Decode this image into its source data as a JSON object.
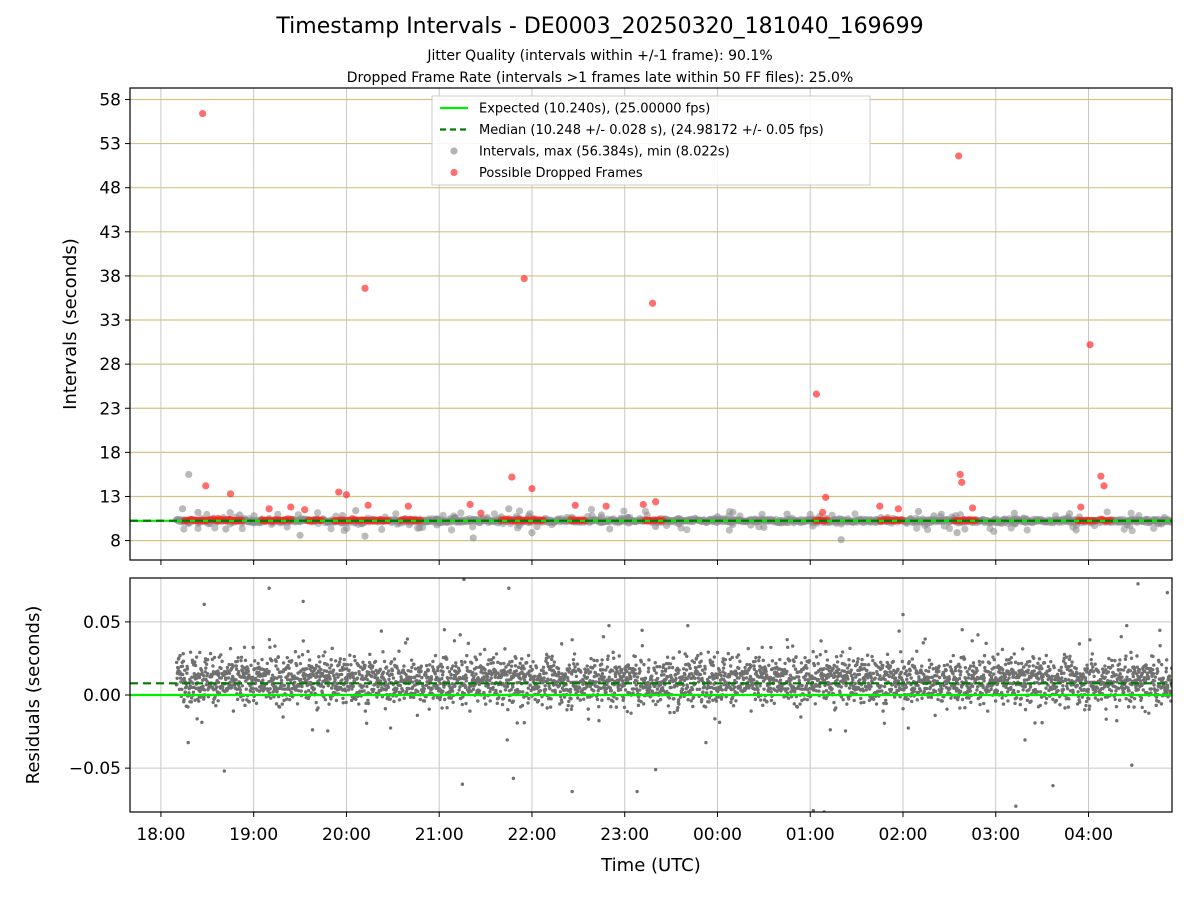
{
  "chart_data": [
    {
      "type": "scatter",
      "title": "Timestamp Intervals - DE0003_20250320_181040_169699",
      "subtitle": [
        "Jitter Quality (intervals within +/-1 frame): 90.1%",
        "Dropped Frame Rate (intervals >1 frames late within 50 FF files): 25.0%"
      ],
      "ylabel": "Intervals (seconds)",
      "xlabel": "",
      "ylim": [
        5.8,
        59.3
      ],
      "yticks": [
        8,
        13,
        18,
        23,
        28,
        33,
        38,
        43,
        48,
        53,
        58
      ],
      "grid": true,
      "legend_position": "upper-center",
      "lines": [
        {
          "name": "Expected (10.240s), (25.00000 fps)",
          "y": 10.24,
          "style": "solid",
          "color": "#00ee00"
        },
        {
          "name": "Median (10.248 +/- 0.028 s), (24.98172 +/- 0.05 fps)",
          "y": 10.248,
          "style": "dashed",
          "color": "#007a00"
        }
      ],
      "series": [
        {
          "name": "Intervals, max (56.384s), min (8.022s)",
          "color": "#808080",
          "x": [
            "18:14",
            "18:18",
            "18:24",
            "18:42",
            "18:51",
            "19:30",
            "20:06",
            "20:12",
            "21:10",
            "21:22",
            "21:45",
            "22:00",
            "22:45",
            "23:20",
            "23:35",
            "00:00",
            "00:10",
            "00:25",
            "00:30",
            "00:45",
            "01:05",
            "01:20",
            "01:50",
            "02:10",
            "02:20",
            "02:35",
            "03:12",
            "03:52",
            "04:25",
            "04:45"
          ],
          "y": [
            11.6,
            15.5,
            11.2,
            9.3,
            10.9,
            8.6,
            11.4,
            8.5,
            10.6,
            8.3,
            11.6,
            8.9,
            10.9,
            9.6,
            9.9,
            10.7,
            11.2,
            10.1,
            9.5,
            11.0,
            10.2,
            8.1,
            10.6,
            11.3,
            10.8,
            8.9,
            11.1,
            9.2,
            9.8,
            9.9
          ]
        },
        {
          "name": "Possible Dropped Frames",
          "color": "#ff3030",
          "x": [
            "18:27",
            "18:29",
            "18:37",
            "18:45",
            "19:10",
            "19:24",
            "19:33",
            "19:55",
            "20:00",
            "20:12",
            "20:14",
            "20:40",
            "21:20",
            "21:27",
            "21:47",
            "21:55",
            "22:00",
            "22:28",
            "22:48",
            "23:12",
            "23:18",
            "23:20",
            "01:04",
            "01:08",
            "01:10",
            "01:45",
            "01:57",
            "02:36",
            "02:37",
            "02:38",
            "02:45",
            "03:55",
            "04:01",
            "04:08",
            "04:10"
          ],
          "y": [
            56.4,
            14.2,
            10.5,
            13.3,
            11.6,
            11.8,
            11.5,
            13.5,
            13.2,
            36.6,
            12.0,
            11.9,
            12.1,
            11.1,
            15.2,
            37.7,
            13.9,
            12.0,
            11.9,
            12.1,
            34.9,
            12.4,
            24.6,
            11.2,
            12.9,
            11.9,
            11.6,
            51.6,
            15.5,
            14.6,
            11.7,
            11.8,
            30.2,
            15.3,
            14.2
          ]
        }
      ]
    },
    {
      "type": "scatter",
      "title": "",
      "xlabel": "Time (UTC)",
      "ylabel": "Residuals (seconds)",
      "ylim": [
        -0.08,
        0.08
      ],
      "yticks": [
        0.05,
        0.0,
        -0.05
      ],
      "ytick_labels": [
        "0.05",
        "0.00",
        "−0.05"
      ],
      "xlim": [
        "17:40",
        "04:54"
      ],
      "xticks": [
        "18:00",
        "19:00",
        "20:00",
        "21:00",
        "22:00",
        "23:00",
        "00:00",
        "01:00",
        "02:00",
        "03:00",
        "04:00"
      ],
      "grid": true,
      "lines": [
        {
          "y": 0.0,
          "style": "solid",
          "color": "#00ee00"
        },
        {
          "y": 0.008,
          "style": "dashed",
          "color": "#007a00"
        }
      ],
      "series": [
        {
          "color": "#707070",
          "x_range": [
            "18:10",
            "04:54"
          ],
          "center": 0.01,
          "spread": 0.02,
          "outliers": [
            {
              "x": "18:28",
              "y": 0.062
            },
            {
              "x": "18:41",
              "y": -0.052
            },
            {
              "x": "19:10",
              "y": 0.073
            },
            {
              "x": "19:32",
              "y": 0.064
            },
            {
              "x": "21:15",
              "y": -0.061
            },
            {
              "x": "21:16",
              "y": 0.079
            },
            {
              "x": "21:45",
              "y": 0.073
            },
            {
              "x": "21:48",
              "y": -0.057
            },
            {
              "x": "22:26",
              "y": -0.066
            },
            {
              "x": "23:08",
              "y": -0.066
            },
            {
              "x": "23:20",
              "y": -0.051
            },
            {
              "x": "01:02",
              "y": -0.079
            },
            {
              "x": "01:09",
              "y": -0.08
            },
            {
              "x": "02:00",
              "y": 0.055
            },
            {
              "x": "03:13",
              "y": -0.076
            },
            {
              "x": "03:37",
              "y": -0.062
            },
            {
              "x": "04:28",
              "y": -0.048
            },
            {
              "x": "04:32",
              "y": 0.076
            },
            {
              "x": "04:51",
              "y": 0.07
            }
          ]
        }
      ]
    }
  ]
}
